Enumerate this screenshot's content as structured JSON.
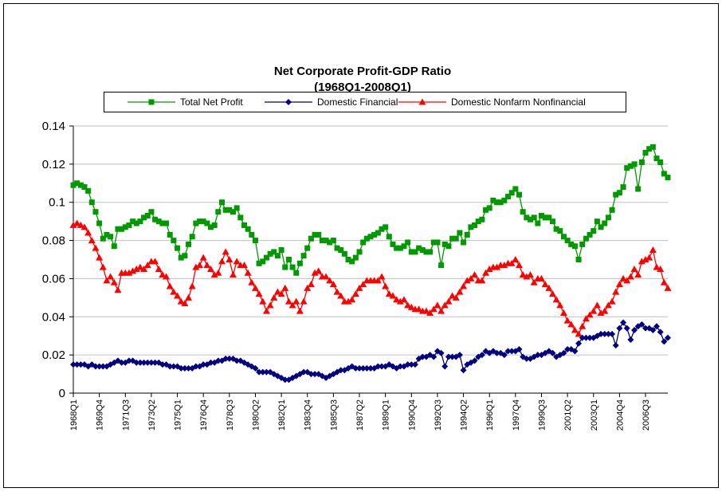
{
  "chart_data": {
    "type": "line",
    "title": "Net Corporate Profit-GDP Ratio",
    "subtitle": "(1968Q1-2008Q1)",
    "ylim": [
      0,
      0.14
    ],
    "yticks": [
      0,
      0.02,
      0.04,
      0.06,
      0.08,
      0.1,
      0.12,
      0.14
    ],
    "grid": true,
    "legend": "top",
    "categories": [
      "1968Q1",
      null,
      null,
      null,
      null,
      null,
      null,
      "1969Q4",
      null,
      null,
      null,
      null,
      null,
      null,
      "1971Q3",
      null,
      null,
      null,
      null,
      null,
      null,
      "1973Q2",
      null,
      null,
      null,
      null,
      null,
      null,
      "1975Q1",
      null,
      null,
      null,
      null,
      null,
      null,
      "1976Q4",
      null,
      null,
      null,
      null,
      null,
      null,
      "1978Q3",
      null,
      null,
      null,
      null,
      null,
      null,
      "1980Q2",
      null,
      null,
      null,
      null,
      null,
      null,
      "1982Q1",
      null,
      null,
      null,
      null,
      null,
      null,
      "1983Q4",
      null,
      null,
      null,
      null,
      null,
      null,
      "1985Q3",
      null,
      null,
      null,
      null,
      null,
      null,
      "1987Q2",
      null,
      null,
      null,
      null,
      null,
      null,
      "1989Q1",
      null,
      null,
      null,
      null,
      null,
      null,
      "1990Q4",
      null,
      null,
      null,
      null,
      null,
      null,
      "1992Q3",
      null,
      null,
      null,
      null,
      null,
      null,
      "1994Q2",
      null,
      null,
      null,
      null,
      null,
      null,
      "1996Q1",
      null,
      null,
      null,
      null,
      null,
      null,
      "1997Q4",
      null,
      null,
      null,
      null,
      null,
      null,
      "1999Q3",
      null,
      null,
      null,
      null,
      null,
      null,
      "2001Q2",
      null,
      null,
      null,
      null,
      null,
      null,
      "2003Q1",
      null,
      null,
      null,
      null,
      null,
      null,
      "2004Q4",
      null,
      null,
      null,
      null,
      null,
      null,
      "2006Q3",
      null,
      null,
      null,
      null,
      null,
      null
    ],
    "series": [
      {
        "name": "Total Net Profit",
        "color": "#009900",
        "marker": "square",
        "values": [
          0.109,
          0.11,
          0.109,
          0.108,
          0.106,
          0.1,
          0.095,
          0.089,
          0.081,
          0.083,
          0.082,
          0.077,
          0.086,
          0.086,
          0.087,
          0.088,
          0.09,
          0.089,
          0.09,
          0.092,
          0.093,
          0.095,
          0.091,
          0.09,
          0.089,
          0.089,
          0.083,
          0.08,
          0.076,
          0.071,
          0.072,
          0.078,
          0.082,
          0.089,
          0.09,
          0.09,
          0.089,
          0.087,
          0.088,
          0.095,
          0.1,
          0.096,
          0.096,
          0.095,
          0.097,
          0.092,
          0.088,
          0.086,
          0.083,
          0.08,
          0.068,
          0.069,
          0.071,
          0.073,
          0.074,
          0.072,
          0.075,
          0.066,
          0.07,
          0.066,
          0.063,
          0.068,
          0.072,
          0.076,
          0.081,
          0.083,
          0.083,
          0.08,
          0.08,
          0.079,
          0.08,
          0.076,
          0.075,
          0.073,
          0.07,
          0.069,
          0.071,
          0.074,
          0.079,
          0.081,
          0.082,
          0.083,
          0.084,
          0.086,
          0.087,
          0.082,
          0.078,
          0.076,
          0.076,
          0.077,
          0.079,
          0.074,
          0.074,
          0.076,
          0.075,
          0.074,
          0.074,
          0.079,
          0.079,
          0.067,
          0.078,
          0.077,
          0.081,
          0.081,
          0.084,
          0.079,
          0.083,
          0.087,
          0.088,
          0.09,
          0.091,
          0.096,
          0.097,
          0.101,
          0.1,
          0.1,
          0.101,
          0.103,
          0.105,
          0.107,
          0.104,
          0.095,
          0.092,
          0.091,
          0.092,
          0.089,
          0.093,
          0.092,
          0.092,
          0.09,
          0.086,
          0.085,
          0.082,
          0.08,
          0.078,
          0.077,
          0.07,
          0.078,
          0.081,
          0.083,
          0.085,
          0.09,
          0.087,
          0.089,
          0.092,
          0.096,
          0.104,
          0.105,
          0.108,
          0.118,
          0.119,
          0.12,
          0.107,
          0.121,
          0.126,
          0.128,
          0.129,
          0.123,
          0.121,
          0.115,
          0.113
        ]
      },
      {
        "name": "Domestic Financial",
        "color": "#000080",
        "marker": "diamond",
        "values": [
          0.015,
          0.015,
          0.015,
          0.015,
          0.014,
          0.015,
          0.014,
          0.014,
          0.014,
          0.014,
          0.015,
          0.016,
          0.017,
          0.016,
          0.016,
          0.017,
          0.017,
          0.016,
          0.016,
          0.016,
          0.016,
          0.016,
          0.016,
          0.016,
          0.015,
          0.015,
          0.014,
          0.014,
          0.014,
          0.013,
          0.013,
          0.013,
          0.013,
          0.014,
          0.014,
          0.015,
          0.015,
          0.016,
          0.016,
          0.017,
          0.017,
          0.018,
          0.018,
          0.018,
          0.017,
          0.017,
          0.016,
          0.015,
          0.014,
          0.013,
          0.011,
          0.011,
          0.011,
          0.011,
          0.01,
          0.009,
          0.008,
          0.007,
          0.007,
          0.008,
          0.009,
          0.01,
          0.011,
          0.011,
          0.01,
          0.01,
          0.01,
          0.009,
          0.008,
          0.009,
          0.01,
          0.011,
          0.012,
          0.012,
          0.013,
          0.014,
          0.013,
          0.013,
          0.013,
          0.013,
          0.013,
          0.013,
          0.014,
          0.014,
          0.014,
          0.015,
          0.014,
          0.013,
          0.014,
          0.014,
          0.015,
          0.015,
          0.015,
          0.018,
          0.019,
          0.019,
          0.02,
          0.019,
          0.022,
          0.021,
          0.014,
          0.019,
          0.019,
          0.019,
          0.02,
          0.012,
          0.015,
          0.016,
          0.017,
          0.019,
          0.02,
          0.022,
          0.021,
          0.022,
          0.021,
          0.021,
          0.02,
          0.022,
          0.022,
          0.022,
          0.023,
          0.019,
          0.018,
          0.018,
          0.019,
          0.02,
          0.02,
          0.021,
          0.022,
          0.021,
          0.019,
          0.02,
          0.021,
          0.023,
          0.023,
          0.022,
          0.026,
          0.029,
          0.029,
          0.029,
          0.029,
          0.03,
          0.031,
          0.031,
          0.031,
          0.031,
          0.025,
          0.034,
          0.037,
          0.034,
          0.028,
          0.033,
          0.035,
          0.036,
          0.034,
          0.034,
          0.033,
          0.035,
          0.032,
          0.027,
          0.029
        ]
      },
      {
        "name": "Domestic Nonfarm Nonfinancial",
        "color": "#ff0000",
        "marker": "triangle",
        "values": [
          0.088,
          0.089,
          0.088,
          0.087,
          0.084,
          0.08,
          0.076,
          0.071,
          0.066,
          0.059,
          0.061,
          0.058,
          0.054,
          0.063,
          0.063,
          0.063,
          0.064,
          0.065,
          0.066,
          0.065,
          0.067,
          0.069,
          0.069,
          0.065,
          0.062,
          0.061,
          0.056,
          0.053,
          0.051,
          0.048,
          0.047,
          0.05,
          0.056,
          0.066,
          0.067,
          0.071,
          0.067,
          0.065,
          0.062,
          0.063,
          0.069,
          0.074,
          0.07,
          0.062,
          0.069,
          0.067,
          0.067,
          0.063,
          0.058,
          0.055,
          0.052,
          0.048,
          0.043,
          0.046,
          0.05,
          0.053,
          0.052,
          0.055,
          0.048,
          0.046,
          0.048,
          0.043,
          0.048,
          0.055,
          0.057,
          0.063,
          0.064,
          0.061,
          0.061,
          0.059,
          0.057,
          0.053,
          0.051,
          0.048,
          0.048,
          0.049,
          0.052,
          0.055,
          0.057,
          0.059,
          0.059,
          0.059,
          0.059,
          0.061,
          0.056,
          0.052,
          0.051,
          0.049,
          0.048,
          0.049,
          0.046,
          0.045,
          0.044,
          0.044,
          0.043,
          0.043,
          0.042,
          0.044,
          0.046,
          0.043,
          0.046,
          0.048,
          0.051,
          0.05,
          0.053,
          0.056,
          0.059,
          0.06,
          0.062,
          0.059,
          0.059,
          0.063,
          0.065,
          0.066,
          0.066,
          0.067,
          0.067,
          0.068,
          0.068,
          0.07,
          0.067,
          0.062,
          0.061,
          0.062,
          0.058,
          0.06,
          0.06,
          0.057,
          0.055,
          0.052,
          0.049,
          0.046,
          0.042,
          0.038,
          0.036,
          0.033,
          0.031,
          0.035,
          0.039,
          0.041,
          0.043,
          0.046,
          0.042,
          0.043,
          0.046,
          0.048,
          0.053,
          0.057,
          0.06,
          0.059,
          0.061,
          0.065,
          0.062,
          0.069,
          0.07,
          0.071,
          0.075,
          0.066,
          0.065,
          0.058,
          0.055
        ]
      }
    ]
  }
}
